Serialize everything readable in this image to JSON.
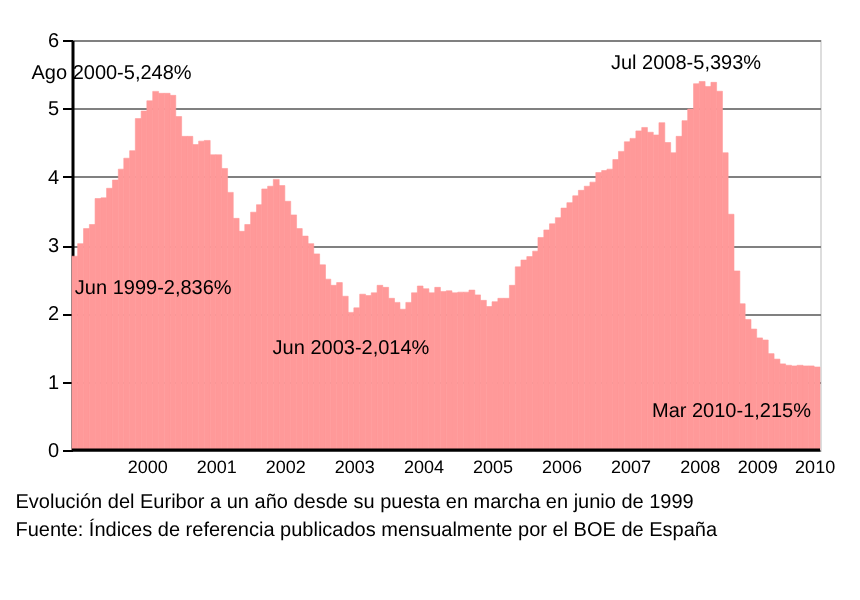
{
  "chart_data": {
    "type": "bar",
    "x": [
      "1999-06",
      "1999-07",
      "1999-08",
      "1999-09",
      "1999-10",
      "1999-11",
      "1999-12",
      "2000-01",
      "2000-02",
      "2000-03",
      "2000-04",
      "2000-05",
      "2000-06",
      "2000-07",
      "2000-08",
      "2000-09",
      "2000-10",
      "2000-11",
      "2000-12",
      "2001-01",
      "2001-02",
      "2001-03",
      "2001-04",
      "2001-05",
      "2001-06",
      "2001-07",
      "2001-08",
      "2001-09",
      "2001-10",
      "2001-11",
      "2001-12",
      "2002-01",
      "2002-02",
      "2002-03",
      "2002-04",
      "2002-05",
      "2002-06",
      "2002-07",
      "2002-08",
      "2002-09",
      "2002-10",
      "2002-11",
      "2002-12",
      "2003-01",
      "2003-02",
      "2003-03",
      "2003-04",
      "2003-05",
      "2003-06",
      "2003-07",
      "2003-08",
      "2003-09",
      "2003-10",
      "2003-11",
      "2003-12",
      "2004-01",
      "2004-02",
      "2004-03",
      "2004-04",
      "2004-05",
      "2004-06",
      "2004-07",
      "2004-08",
      "2004-09",
      "2004-10",
      "2004-11",
      "2004-12",
      "2005-01",
      "2005-02",
      "2005-03",
      "2005-04",
      "2005-05",
      "2005-06",
      "2005-07",
      "2005-08",
      "2005-09",
      "2005-10",
      "2005-11",
      "2005-12",
      "2006-01",
      "2006-02",
      "2006-03",
      "2006-04",
      "2006-05",
      "2006-06",
      "2006-07",
      "2006-08",
      "2006-09",
      "2006-10",
      "2006-11",
      "2006-12",
      "2007-01",
      "2007-02",
      "2007-03",
      "2007-04",
      "2007-05",
      "2007-06",
      "2007-07",
      "2007-08",
      "2007-09",
      "2007-10",
      "2007-11",
      "2007-12",
      "2008-01",
      "2008-02",
      "2008-03",
      "2008-04",
      "2008-05",
      "2008-06",
      "2008-07",
      "2008-08",
      "2008-09",
      "2008-10",
      "2008-11",
      "2008-12",
      "2009-01",
      "2009-02",
      "2009-03",
      "2009-04",
      "2009-05",
      "2009-06",
      "2009-07",
      "2009-08",
      "2009-09",
      "2009-10",
      "2009-11",
      "2009-12",
      "2010-01",
      "2010-02",
      "2010-03"
    ],
    "values": [
      2.836,
      3.02,
      3.24,
      3.3,
      3.68,
      3.69,
      3.83,
      3.95,
      4.11,
      4.27,
      4.38,
      4.85,
      4.96,
      5.11,
      5.248,
      5.22,
      5.22,
      5.19,
      4.88,
      4.59,
      4.59,
      4.47,
      4.52,
      4.53,
      4.32,
      4.32,
      4.12,
      3.77,
      3.39,
      3.2,
      3.3,
      3.48,
      3.59,
      3.82,
      3.86,
      3.96,
      3.87,
      3.64,
      3.44,
      3.24,
      3.13,
      3.02,
      2.87,
      2.71,
      2.5,
      2.41,
      2.45,
      2.25,
      2.014,
      2.08,
      2.28,
      2.26,
      2.3,
      2.41,
      2.38,
      2.22,
      2.16,
      2.06,
      2.16,
      2.3,
      2.4,
      2.36,
      2.3,
      2.38,
      2.32,
      2.33,
      2.3,
      2.31,
      2.31,
      2.34,
      2.27,
      2.19,
      2.1,
      2.17,
      2.22,
      2.22,
      2.41,
      2.68,
      2.78,
      2.83,
      2.91,
      3.11,
      3.22,
      3.31,
      3.4,
      3.54,
      3.62,
      3.72,
      3.8,
      3.86,
      3.92,
      4.06,
      4.09,
      4.11,
      4.25,
      4.37,
      4.51,
      4.56,
      4.67,
      4.72,
      4.65,
      4.61,
      4.79,
      4.5,
      4.35,
      4.59,
      4.82,
      4.99,
      5.36,
      5.393,
      5.32,
      5.38,
      5.25,
      4.35,
      3.45,
      2.62,
      2.14,
      1.91,
      1.77,
      1.64,
      1.61,
      1.41,
      1.33,
      1.26,
      1.24,
      1.23,
      1.24,
      1.23,
      1.23,
      1.215
    ],
    "color": "#ff9999",
    "xlim": [
      "1999-06",
      "2010-04"
    ],
    "xticks": [
      {
        "value": "2000-07",
        "label": "2000"
      },
      {
        "value": "2001-07",
        "label": "2001"
      },
      {
        "value": "2002-07",
        "label": "2002"
      },
      {
        "value": "2003-07",
        "label": "2003"
      },
      {
        "value": "2004-07",
        "label": "2004"
      },
      {
        "value": "2005-07",
        "label": "2005"
      },
      {
        "value": "2006-07",
        "label": "2006"
      },
      {
        "value": "2007-07",
        "label": "2007"
      },
      {
        "value": "2008-07",
        "label": "2008"
      },
      {
        "value": "2009-05",
        "label": "2009"
      },
      {
        "value": "2010-03",
        "label": "2010"
      }
    ],
    "ylim": [
      0,
      6
    ],
    "yticks": [
      0,
      1,
      2,
      3,
      4,
      5,
      6
    ],
    "grid": "y",
    "annotations": [
      {
        "text": "Jun 1999-2,836%",
        "x": "1999-06",
        "y": 2.836
      },
      {
        "text": "Ago 2000-5,248%",
        "x": "2000-08",
        "y": 5.248
      },
      {
        "text": "Jun 2003-2,014%",
        "x": "2003-06",
        "y": 2.014
      },
      {
        "text": "Jul 2008-5,393%",
        "x": "2008-07",
        "y": 5.393
      },
      {
        "text": "Mar 2010-1,215%",
        "x": "2010-03",
        "y": 1.215
      },
      "Evolución del Euribor a un año desde su puesta en marcha en junio de 1999",
      "Fuente: Índices de referencia publicados mensualmente por el BOE de España"
    ]
  }
}
